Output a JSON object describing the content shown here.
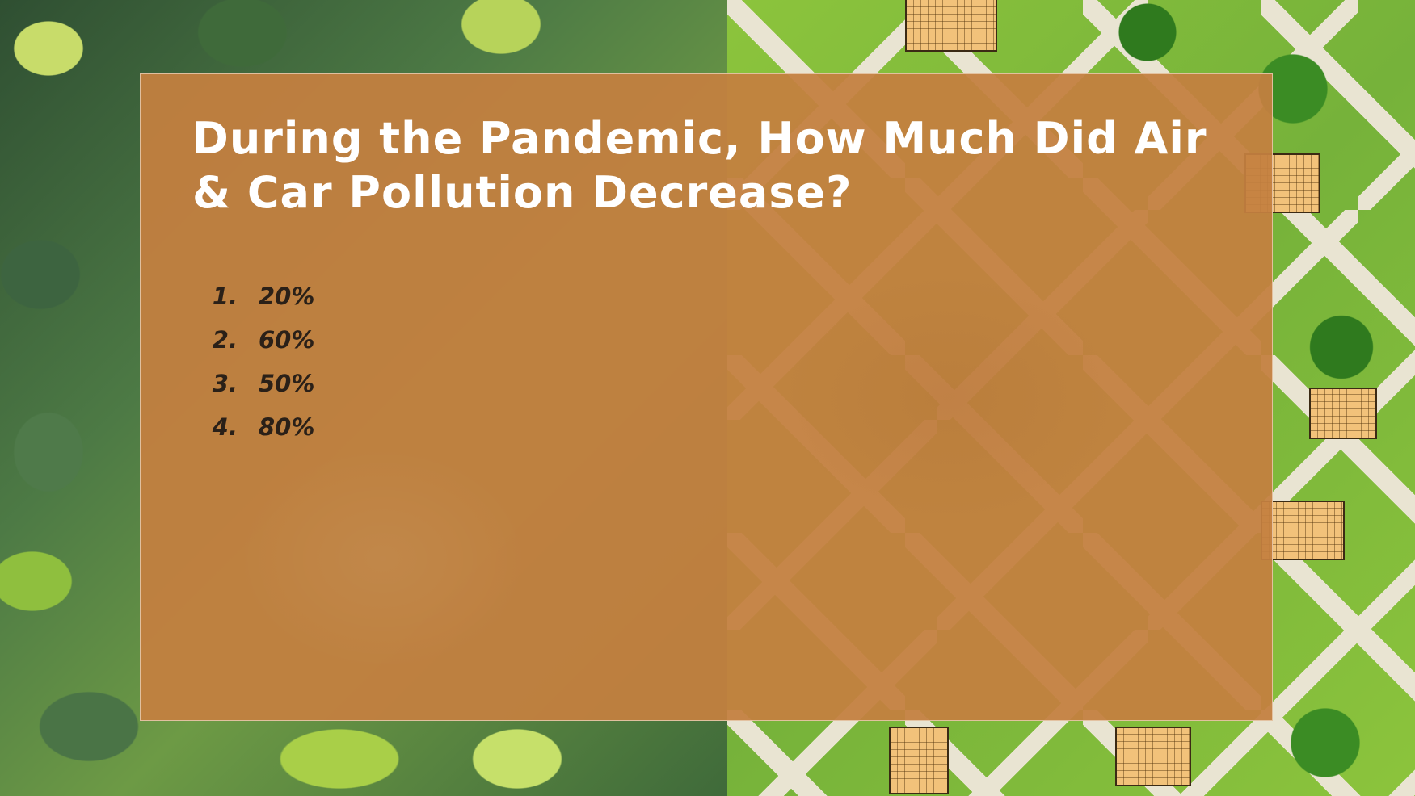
{
  "slide": {
    "title": "During the Pandemic, How Much Did Air & Car Pollution Decrease?",
    "options": [
      {
        "number": "1.",
        "text": "20%"
      },
      {
        "number": "2.",
        "text": "60%"
      },
      {
        "number": "3.",
        "text": "50%"
      },
      {
        "number": "4.",
        "text": "80%"
      }
    ]
  },
  "colors": {
    "panel": "#c47f40",
    "title_text": "#ffffff",
    "option_text": "#2a2018"
  }
}
